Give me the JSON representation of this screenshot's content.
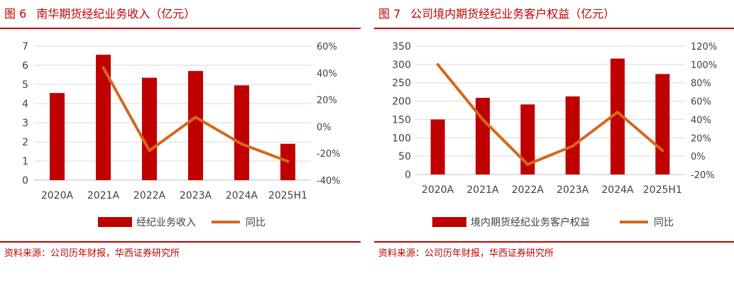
{
  "colors": {
    "bar": "#c00000",
    "line": "#d2691e",
    "title": "#c00000",
    "axis": "#404040",
    "grid": "#d9d9d9"
  },
  "chart_data": [
    {
      "type": "bar",
      "figure_label": "图 6",
      "title": "南华期货经纪业务收入（亿元）",
      "categories": [
        "2020A",
        "2021A",
        "2022A",
        "2023A",
        "2024A",
        "2025H1"
      ],
      "series": [
        {
          "name": "经纪业务收入",
          "type": "bar",
          "axis": "left",
          "values": [
            4.55,
            6.55,
            5.35,
            5.7,
            4.95,
            1.9
          ]
        },
        {
          "name": "同比",
          "type": "line",
          "axis": "right",
          "values": [
            null,
            44,
            -18,
            7,
            -13,
            -26
          ]
        }
      ],
      "y_left": {
        "ticks": [
          "0",
          "1",
          "2",
          "3",
          "4",
          "5",
          "6",
          "7"
        ],
        "ylim": [
          0,
          7
        ]
      },
      "y_right": {
        "ticks": [
          "-40%",
          "-20%",
          "0%",
          "20%",
          "40%",
          "60%"
        ],
        "ylim": [
          -40,
          60
        ]
      },
      "legend": {
        "position": "bottom",
        "bar_label": "经纪业务收入",
        "line_label": "同比"
      },
      "source": "资料来源：公司历年财报，华西证券研究所"
    },
    {
      "type": "bar",
      "figure_label": "图 7",
      "title": "公司境内期货经纪业务客户权益（亿元）",
      "categories": [
        "2020A",
        "2021A",
        "2022A",
        "2023A",
        "2024A",
        "2025H1"
      ],
      "series": [
        {
          "name": "境内期货经纪业务客户权益",
          "type": "bar",
          "axis": "left",
          "values": [
            150,
            209,
            191,
            213,
            316,
            274
          ]
        },
        {
          "name": "同比",
          "type": "line",
          "axis": "right",
          "values": [
            100,
            40,
            -9,
            11,
            48,
            6
          ]
        }
      ],
      "y_left": {
        "ticks": [
          "0",
          "50",
          "100",
          "150",
          "200",
          "250",
          "300",
          "350"
        ],
        "ylim": [
          0,
          350
        ]
      },
      "y_right": {
        "ticks": [
          "-20%",
          "0%",
          "20%",
          "40%",
          "60%",
          "80%",
          "100%",
          "120%"
        ],
        "ylim": [
          -20,
          120
        ]
      },
      "legend": {
        "position": "bottom",
        "bar_label": "境内期货经纪业务客户权益",
        "line_label": "同比"
      },
      "source": "资料来源：公司历年财报，华西证券研究所"
    }
  ]
}
